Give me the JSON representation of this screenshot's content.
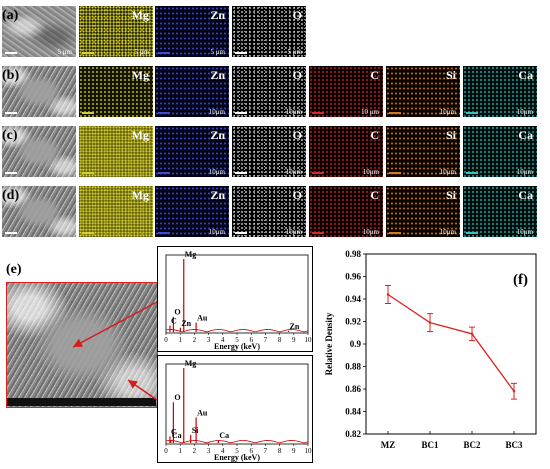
{
  "rows": [
    {
      "label": "(a)",
      "tiles": [
        {
          "kind": "sem",
          "element": "",
          "scale": "5 μm"
        },
        {
          "kind": "mg",
          "element": "Mg",
          "scale": "5 μm"
        },
        {
          "kind": "zn",
          "element": "Zn",
          "scale": "5 μm"
        },
        {
          "kind": "o",
          "element": "O",
          "scale": "5 μm"
        }
      ]
    },
    {
      "label": "(b)",
      "tiles": [
        {
          "kind": "sem",
          "element": "",
          "scale": ""
        },
        {
          "kind": "mg",
          "element": "Mg",
          "scale": ""
        },
        {
          "kind": "zn",
          "element": "Zn",
          "scale": "10μm"
        },
        {
          "kind": "o",
          "element": "O",
          "scale": "10μm"
        },
        {
          "kind": "c",
          "element": "C",
          "scale": "10 μm"
        },
        {
          "kind": "si",
          "element": "Si",
          "scale": "10μm"
        },
        {
          "kind": "ca",
          "element": "Ca",
          "scale": "10μm"
        }
      ]
    },
    {
      "label": "(c)",
      "tiles": [
        {
          "kind": "sem",
          "element": "",
          "scale": ""
        },
        {
          "kind": "mg",
          "element": "Mg",
          "scale": ""
        },
        {
          "kind": "zn",
          "element": "Zn",
          "scale": "10μm"
        },
        {
          "kind": "o",
          "element": "O",
          "scale": "10μm"
        },
        {
          "kind": "c",
          "element": "C",
          "scale": "10μm"
        },
        {
          "kind": "si",
          "element": "Si",
          "scale": "10μm"
        },
        {
          "kind": "ca",
          "element": "Ca",
          "scale": "10μm"
        }
      ]
    },
    {
      "label": "(d)",
      "tiles": [
        {
          "kind": "sem",
          "element": "",
          "scale": ""
        },
        {
          "kind": "mg",
          "element": "Mg",
          "scale": ""
        },
        {
          "kind": "zn",
          "element": "Zn",
          "scale": "10μm"
        },
        {
          "kind": "o",
          "element": "O",
          "scale": "10μm"
        },
        {
          "kind": "c",
          "element": "C",
          "scale": "10μm"
        },
        {
          "kind": "si",
          "element": "Si",
          "scale": "10μm"
        },
        {
          "kind": "ca",
          "element": "Ca",
          "scale": "10μm"
        }
      ]
    }
  ],
  "panel_e": {
    "label": "(e)",
    "spectra": [
      {
        "xlabel": "Energy (keV)",
        "ticks": [
          "0",
          "1",
          "2",
          "3",
          "4",
          "5",
          "6",
          "7",
          "8",
          "9",
          "10"
        ],
        "peaks": [
          {
            "label": "Mg",
            "x": 1.25,
            "h": 1.0
          },
          {
            "label": "O",
            "x": 0.52,
            "h": 0.22
          },
          {
            "label": "C",
            "x": 0.28,
            "h": 0.1
          },
          {
            "label": "Zn",
            "x": 1.01,
            "h": 0.07
          },
          {
            "label": "Au",
            "x": 2.12,
            "h": 0.14
          },
          {
            "label": "Zn",
            "x": 8.63,
            "h": 0.03
          }
        ]
      },
      {
        "xlabel": "Energy (keV)",
        "ticks": [
          "0",
          "1",
          "2",
          "3",
          "4",
          "5",
          "6",
          "7",
          "8",
          "9",
          "10"
        ],
        "peaks": [
          {
            "label": "Mg",
            "x": 1.25,
            "h": 1.0
          },
          {
            "label": "O",
            "x": 0.52,
            "h": 0.55
          },
          {
            "label": "C",
            "x": 0.28,
            "h": 0.1
          },
          {
            "label": "Ca",
            "x": 0.34,
            "h": 0.05
          },
          {
            "label": "Si",
            "x": 1.74,
            "h": 0.12
          },
          {
            "label": "Au",
            "x": 2.12,
            "h": 0.35
          },
          {
            "label": "Ca",
            "x": 3.69,
            "h": 0.05
          }
        ]
      }
    ]
  },
  "chart_data": {
    "type": "line",
    "panel_label": "(f)",
    "categories": [
      "MZ",
      "BC1",
      "BC2",
      "BC3"
    ],
    "values": [
      0.944,
      0.919,
      0.909,
      0.858
    ],
    "errors": [
      0.008,
      0.008,
      0.006,
      0.007
    ],
    "ylabel": "Relative Density",
    "xlabel": "",
    "ylim": [
      0.82,
      0.98
    ],
    "yticks": [
      "0.82",
      "0.84",
      "0.86",
      "0.88",
      "0.9",
      "0.92",
      "0.94",
      "0.96",
      "0.98"
    ],
    "line_color": "#e02020"
  }
}
